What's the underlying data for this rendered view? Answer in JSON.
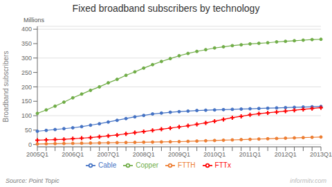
{
  "chart_data": {
    "type": "line",
    "title": "Fixed broadband subscribers by technology",
    "y_label": "Broadband subscribers",
    "annotations": [
      "Millions",
      "Source: Point Topic",
      "informitv.com"
    ],
    "categories": [
      "2005Q1",
      null,
      null,
      null,
      "2006Q1",
      null,
      null,
      null,
      "2007Q1",
      null,
      null,
      null,
      "2008Q1",
      null,
      null,
      null,
      "2009Q1",
      null,
      null,
      null,
      "2010Q1",
      null,
      null,
      null,
      "2011Q1",
      null,
      null,
      null,
      "2012Q1",
      null,
      null,
      null,
      "2013Q1"
    ],
    "series": [
      {
        "name": "Cable",
        "color": "#4472C4",
        "marker": "circle",
        "values": [
          46,
          49,
          52,
          55,
          58,
          62,
          67,
          72,
          78,
          84,
          90,
          96,
          101,
          106,
          109,
          112,
          114,
          116,
          118,
          119,
          120,
          121,
          122,
          123,
          124,
          125,
          126,
          127,
          128,
          129,
          130,
          131,
          132
        ]
      },
      {
        "name": "Copper",
        "color": "#70AD47",
        "marker": "circle",
        "values": [
          108,
          120,
          133,
          147,
          162,
          175,
          188,
          200,
          214,
          226,
          240,
          252,
          265,
          277,
          288,
          298,
          308,
          316,
          323,
          329,
          335,
          339,
          343,
          346,
          349,
          351,
          353,
          356,
          358,
          360,
          362,
          364,
          365
        ]
      },
      {
        "name": "FTTH",
        "color": "#ED7D31",
        "marker": "circle",
        "values": [
          2,
          2.5,
          3,
          3.5,
          4,
          4.5,
          5,
          5.5,
          6,
          6.5,
          7,
          7.5,
          8,
          8.5,
          9,
          9.5,
          10,
          11,
          12,
          13,
          14,
          15,
          16,
          17,
          18,
          19,
          20,
          21,
          22,
          23,
          24,
          25,
          26
        ]
      },
      {
        "name": "FTTx",
        "color": "#FF0000",
        "marker": "plus",
        "values": [
          15,
          16,
          17,
          18,
          20,
          22,
          24,
          27,
          30,
          33,
          37,
          41,
          45,
          49,
          53,
          57,
          61,
          65,
          70,
          75,
          81,
          87,
          93,
          98,
          103,
          107,
          110,
          113,
          116,
          119,
          122,
          125,
          128
        ]
      }
    ],
    "ylim": [
      -8,
      410
    ],
    "yticks": [
      0,
      50,
      100,
      150,
      200,
      250,
      300,
      350,
      400
    ],
    "grid": true,
    "legend": "bottom"
  }
}
